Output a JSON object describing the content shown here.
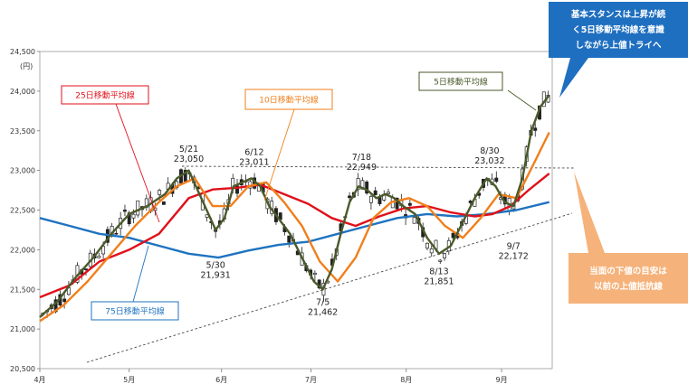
{
  "chart_data": {
    "type": "candlestick",
    "yunit": "(円)",
    "ylim": [
      20500,
      24500
    ],
    "yticks": [
      "24,500",
      "24,000",
      "23,500",
      "23,000",
      "22,500",
      "22,000",
      "21,500",
      "21,000",
      "20,500"
    ],
    "ytick_values": [
      24500,
      24000,
      23500,
      23000,
      22500,
      22000,
      21500,
      21000,
      20500
    ],
    "xticks": [
      "4月",
      "5月",
      "6月",
      "7月",
      "8月",
      "9月"
    ],
    "xtick_days": [
      0,
      30,
      61,
      91,
      123,
      155
    ],
    "xdomain": [
      0,
      172
    ],
    "peaks": [
      {
        "label": "5/21",
        "value": "23,050",
        "day": 50,
        "price": 23050
      },
      {
        "label": "6/12",
        "value": "23,011",
        "day": 72,
        "price": 23011
      },
      {
        "label": "7/18",
        "value": "22,949",
        "day": 108,
        "price": 22949
      },
      {
        "label": "8/30",
        "value": "23,032",
        "day": 151,
        "price": 23032
      }
    ],
    "troughs": [
      {
        "label": "5/30",
        "value": "21,931",
        "day": 59,
        "price": 21931
      },
      {
        "label": "7/5",
        "value": "21,462",
        "day": 95,
        "price": 21462
      },
      {
        "label": "8/13",
        "value": "21,851",
        "day": 134,
        "price": 21851
      },
      {
        "label": "9/7",
        "value": "22,172",
        "day": 159,
        "price": 22172
      }
    ],
    "series": [
      {
        "name": "5日移動平均線",
        "color": "#4a5a2a",
        "x": [
          0,
          6,
          12,
          18,
          24,
          30,
          36,
          42,
          46,
          50,
          53,
          56,
          59,
          62,
          65,
          68,
          71,
          74,
          77,
          80,
          84,
          88,
          92,
          95,
          98,
          101,
          104,
          107,
          110,
          113,
          116,
          119,
          122,
          126,
          130,
          134,
          138,
          142,
          146,
          150,
          153,
          156,
          159,
          162,
          165,
          168,
          171
        ],
        "y": [
          21150,
          21350,
          21650,
          21900,
          22200,
          22450,
          22550,
          22700,
          22900,
          23000,
          22750,
          22500,
          22250,
          22400,
          22800,
          22850,
          22900,
          22800,
          22550,
          22400,
          22200,
          21900,
          21600,
          21500,
          21750,
          22200,
          22600,
          22800,
          22750,
          22650,
          22700,
          22650,
          22550,
          22450,
          22150,
          21950,
          22050,
          22350,
          22650,
          22900,
          22800,
          22600,
          22550,
          22900,
          23500,
          23800,
          23950
        ]
      },
      {
        "name": "10日移動平均線",
        "color": "#f07f1c",
        "x": [
          0,
          8,
          16,
          24,
          32,
          40,
          46,
          52,
          58,
          64,
          70,
          76,
          82,
          88,
          94,
          100,
          106,
          112,
          118,
          124,
          130,
          136,
          142,
          148,
          154,
          160,
          166,
          171
        ],
        "y": [
          21100,
          21300,
          21600,
          21950,
          22300,
          22600,
          22800,
          22900,
          22550,
          22550,
          22800,
          22850,
          22600,
          22300,
          21850,
          21600,
          21900,
          22400,
          22600,
          22650,
          22550,
          22300,
          22150,
          22400,
          22700,
          22650,
          23100,
          23480
        ]
      },
      {
        "name": "25日移動平均線",
        "color": "#e0101a",
        "x": [
          0,
          10,
          20,
          30,
          40,
          50,
          58,
          66,
          74,
          82,
          90,
          98,
          106,
          114,
          122,
          130,
          138,
          146,
          152,
          158,
          164,
          171
        ],
        "y": [
          21400,
          21550,
          21850,
          22000,
          22200,
          22650,
          22760,
          22780,
          22820,
          22700,
          22580,
          22400,
          22300,
          22420,
          22520,
          22550,
          22470,
          22420,
          22450,
          22550,
          22750,
          22960
        ]
      },
      {
        "name": "75日移動平均線",
        "color": "#1e73c0",
        "x": [
          0,
          10,
          20,
          30,
          40,
          50,
          60,
          70,
          80,
          90,
          100,
          110,
          120,
          130,
          140,
          150,
          160,
          171
        ],
        "y": [
          22400,
          22300,
          22200,
          22150,
          22050,
          21950,
          21900,
          21990,
          22060,
          22100,
          22200,
          22300,
          22400,
          22450,
          22420,
          22450,
          22500,
          22600
        ]
      }
    ]
  },
  "labels": {
    "ma5": "5日移動平均線",
    "ma10": "10日移動平均線",
    "ma25": "25日移動平均線",
    "ma75": "75日移動平均線"
  },
  "callouts": {
    "top": [
      "基本スタンスは上昇が続",
      "く5日移動平均線を意識",
      "しながら上値トライへ"
    ],
    "bottom": [
      "当面の下値の目安は",
      "以前の上値抵抗線"
    ]
  },
  "colors": {
    "candle": "#222222",
    "callout_top": "#1f6fc0",
    "callout_bottom": "#f5b27a",
    "resistance": "#444444"
  }
}
